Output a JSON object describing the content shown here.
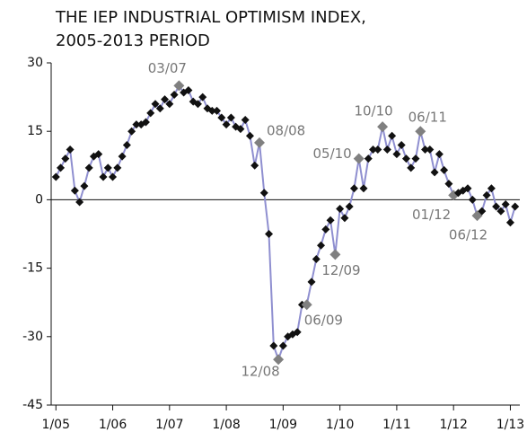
{
  "chart_data": {
    "type": "line",
    "title": [
      "THE IEP INDUSTRIAL OPTIMISM INDEX,",
      "2005-2013 PERIOD"
    ],
    "x": [
      0,
      1,
      2,
      3,
      4,
      5,
      6,
      7,
      8,
      9,
      10,
      11,
      12,
      13,
      14,
      15,
      16,
      17,
      18,
      19,
      20,
      21,
      22,
      23,
      24,
      25,
      26,
      27,
      28,
      29,
      30,
      31,
      32,
      33,
      34,
      35,
      36,
      37,
      38,
      39,
      40,
      41,
      42,
      43,
      44,
      45,
      46,
      47,
      48,
      49,
      50,
      51,
      52,
      53,
      54,
      55,
      56,
      57,
      58,
      59,
      60,
      61,
      62,
      63,
      64,
      65,
      66,
      67,
      68,
      69,
      70,
      71,
      72,
      73,
      74,
      75,
      76,
      77,
      78,
      79,
      80,
      81,
      82,
      83,
      84,
      85,
      86,
      87,
      88,
      89,
      90,
      91,
      92,
      93,
      94,
      95,
      96,
      97
    ],
    "series": [
      {
        "color": "#8f8fd0",
        "marker_color": "#111111",
        "highlight_color": "#808080",
        "values": [
          5,
          7,
          9,
          11,
          2,
          -0.5,
          3,
          7,
          9.5,
          10,
          5,
          7,
          5,
          7,
          9.5,
          12,
          15,
          16.5,
          16.5,
          17,
          19,
          21,
          20,
          22,
          21,
          23,
          25,
          23.5,
          24,
          21.5,
          21,
          22.5,
          20,
          19.5,
          19.5,
          18,
          16.5,
          18,
          16,
          15.5,
          17.5,
          14,
          7.5,
          12.5,
          1.5,
          -7.5,
          -32,
          -35,
          -32,
          -30,
          -29.5,
          -29,
          -23,
          -23,
          -18,
          -13,
          -10,
          -6.5,
          -4.5,
          -12,
          -2,
          -4,
          -1.5,
          2.5,
          9,
          2.5,
          9,
          11,
          11,
          16,
          11,
          14,
          10,
          12,
          9,
          7,
          9,
          15,
          11,
          11,
          6,
          10,
          6.5,
          3.5,
          1,
          1.5,
          2,
          2.5,
          0,
          -3.5,
          -2.5,
          1,
          2.5,
          -1.5,
          -2.5,
          -1,
          -5,
          -1.5
        ]
      }
    ],
    "annotations": [
      {
        "text": "03/07",
        "x": 26
      },
      {
        "text": "08/08",
        "x": 43
      },
      {
        "text": "12/08",
        "x": 47
      },
      {
        "text": "06/09",
        "x": 53
      },
      {
        "text": "12/09",
        "x": 59
      },
      {
        "text": "05/10",
        "x": 64
      },
      {
        "text": "10/10",
        "x": 69
      },
      {
        "text": "06/11",
        "x": 77
      },
      {
        "text": "01/12",
        "x": 84
      },
      {
        "text": "06/12",
        "x": 89
      }
    ],
    "xlim": [
      -1,
      98
    ],
    "xticks": [
      {
        "value": 0,
        "label": "1/05"
      },
      {
        "value": 12,
        "label": "1/06"
      },
      {
        "value": 24,
        "label": "1/07"
      },
      {
        "value": 36,
        "label": "1/08"
      },
      {
        "value": 48,
        "label": "1/09"
      },
      {
        "value": 60,
        "label": "1/10"
      },
      {
        "value": 72,
        "label": "1/11"
      },
      {
        "value": 84,
        "label": "1/12"
      },
      {
        "value": 96,
        "label": "1/13"
      }
    ],
    "ylim": [
      -45,
      30
    ],
    "yticks": [
      -45,
      -30,
      -15,
      0,
      15,
      30
    ]
  }
}
